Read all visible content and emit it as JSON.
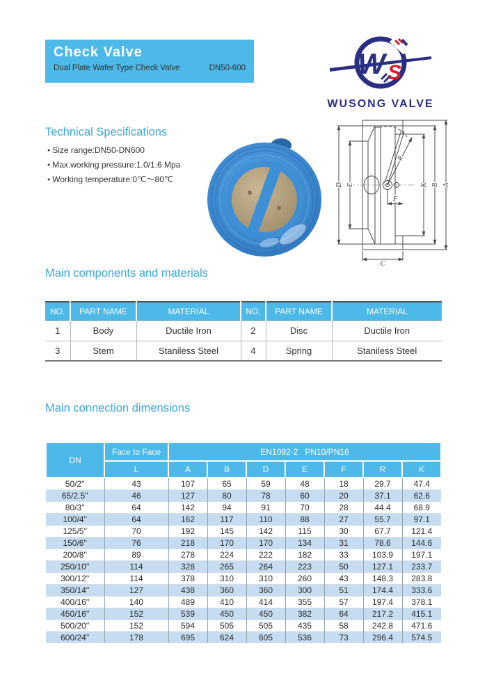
{
  "header": {
    "title": "Check Valve",
    "subtitle": "Dual Plate Wafer Type Check Valve",
    "size_range": "DN50-600",
    "background": "#4db9e9"
  },
  "brand": {
    "name": "WUSONG VALVE",
    "monogram": "WS",
    "navy": "#2b2f84",
    "red": "#d21f2c"
  },
  "tech_specs": {
    "heading": "Technical Specifications",
    "items": [
      "Size range:DN50-DN600",
      "Max.working pressure:1.0/1.6 Mpa",
      "Working temperature:0℃～80℃"
    ]
  },
  "components": {
    "heading": "Main components and materials",
    "headers": [
      "NO.",
      "PART NAME",
      "MATERIAL",
      "NO.",
      "PART NAME",
      "MATERIAL"
    ],
    "rows": [
      [
        "1",
        "Body",
        "Ductile Iron",
        "2",
        "Disc",
        "Ductile Iron"
      ],
      [
        "3",
        "Stem",
        "Staniless Steel",
        "4",
        "Spring",
        "Staniless Steel"
      ]
    ]
  },
  "dimensions": {
    "heading": "Main connection dimensions",
    "dn_label": "DN",
    "face_to_face_label": "Face to Face",
    "standard_label": "EN1092-2   PN10/PN16",
    "sub_headers": [
      "L",
      "A",
      "B",
      "D",
      "E",
      "F",
      "R",
      "K"
    ],
    "rows": [
      [
        "50/2''",
        "43",
        "107",
        "65",
        "59",
        "48",
        "18",
        "29.7",
        "47.4"
      ],
      [
        "65/2.5''",
        "46",
        "127",
        "80",
        "78",
        "60",
        "20",
        "37.1",
        "62.6"
      ],
      [
        "80/3''",
        "64",
        "142",
        "94",
        "91",
        "70",
        "28",
        "44.4",
        "68.9"
      ],
      [
        "100/4''",
        "64",
        "162",
        "117",
        "110",
        "88",
        "27",
        "55.7",
        "97.1"
      ],
      [
        "125/5''",
        "70",
        "192",
        "145",
        "142",
        "115",
        "30",
        "67.7",
        "121.4"
      ],
      [
        "150/6''",
        "76",
        "218",
        "170",
        "170",
        "134",
        "31",
        "78.6",
        "144.6"
      ],
      [
        "200/8''",
        "89",
        "278",
        "224",
        "222",
        "182",
        "33",
        "103.9",
        "197.1"
      ],
      [
        "250/10''",
        "114",
        "328",
        "265",
        "264",
        "223",
        "50",
        "127.1",
        "233.7"
      ],
      [
        "300/12''",
        "114",
        "378",
        "310",
        "310",
        "260",
        "43",
        "148.3",
        "283.8"
      ],
      [
        "350/14''",
        "127",
        "438",
        "360",
        "360",
        "300",
        "51",
        "174.4",
        "333.6"
      ],
      [
        "400/16''",
        "140",
        "489",
        "410",
        "414",
        "355",
        "57",
        "197.4",
        "378.1"
      ],
      [
        "450/16''",
        "152",
        "539",
        "450",
        "450",
        "382",
        "64",
        "217.2",
        "415.1"
      ],
      [
        "500/20''",
        "152",
        "594",
        "505",
        "505",
        "435",
        "58",
        "242.8",
        "471.6"
      ],
      [
        "600/24''",
        "178",
        "695",
        "624",
        "605",
        "536",
        "73",
        "296.4",
        "574.5"
      ]
    ]
  },
  "drawing": {
    "labels": {
      "a": "A",
      "b": "B",
      "k": "K",
      "r": "R",
      "f": "F",
      "e": "E",
      "d": "D",
      "c": "C"
    }
  },
  "colors": {
    "accent_blue": "#4db9e9",
    "heading_blue": "#39a7de",
    "alt_row_blue": "#c5dcf1",
    "valve_body_blue": "#3a86cd",
    "plate_tan": "#b3a184"
  }
}
